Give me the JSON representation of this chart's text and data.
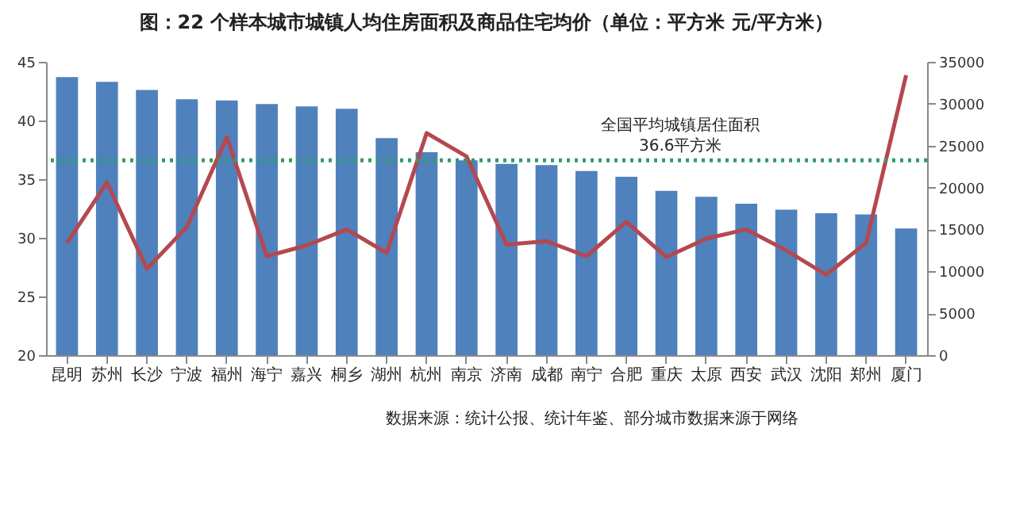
{
  "chart_data": {
    "type": "bar",
    "title": "图：22 个样本城市城镇人均住房面积及商品住宅均价（单位：平方米 元/平方米）",
    "categories": [
      "昆明",
      "苏州",
      "长沙",
      "宁波",
      "福州",
      "海宁",
      "嘉兴",
      "桐乡",
      "湖州",
      "杭州",
      "南京",
      "济南",
      "成都",
      "南宁",
      "合肥",
      "重庆",
      "太原",
      "西安",
      "武汉",
      "沈阳",
      "郑州",
      "厦门"
    ],
    "series": [
      {
        "color": "#4f81bd",
        "values": [
          43.7,
          43.3,
          42.6,
          41.8,
          41.7,
          41.4,
          41.2,
          41.0,
          38.5,
          37.3,
          36.6,
          36.3,
          36.2,
          35.7,
          35.2,
          34.0,
          33.5,
          32.9,
          32.4,
          32.1,
          32.0,
          30.8
        ]
      },
      {
        "type": "line",
        "axis": "y2",
        "color": "#b5484f",
        "values": [
          13400,
          20600,
          10300,
          15300,
          26000,
          11800,
          13100,
          15000,
          12200,
          26500,
          23700,
          13200,
          13600,
          11800,
          15900,
          11700,
          13900,
          15000,
          12500,
          9600,
          13400,
          33400
        ]
      }
    ],
    "ylim": [
      20,
      45
    ],
    "yticks": [
      20,
      25,
      30,
      35,
      40,
      45
    ],
    "y2lim": [
      0,
      35000
    ],
    "y2ticks": [
      0,
      5000,
      10000,
      15000,
      20000,
      25000,
      30000,
      35000
    ],
    "ref_lines": [
      {
        "axis": "y",
        "value": 36.6,
        "color": "#2e9e6a",
        "line_style": "dotted"
      }
    ],
    "annotations": [
      {
        "text": "全国平均城镇居住面积36.6平方米",
        "y": 36.6
      },
      "数据来源：统计公报、统计年鉴、部分城市数据来源于网络"
    ],
    "grid": false
  }
}
